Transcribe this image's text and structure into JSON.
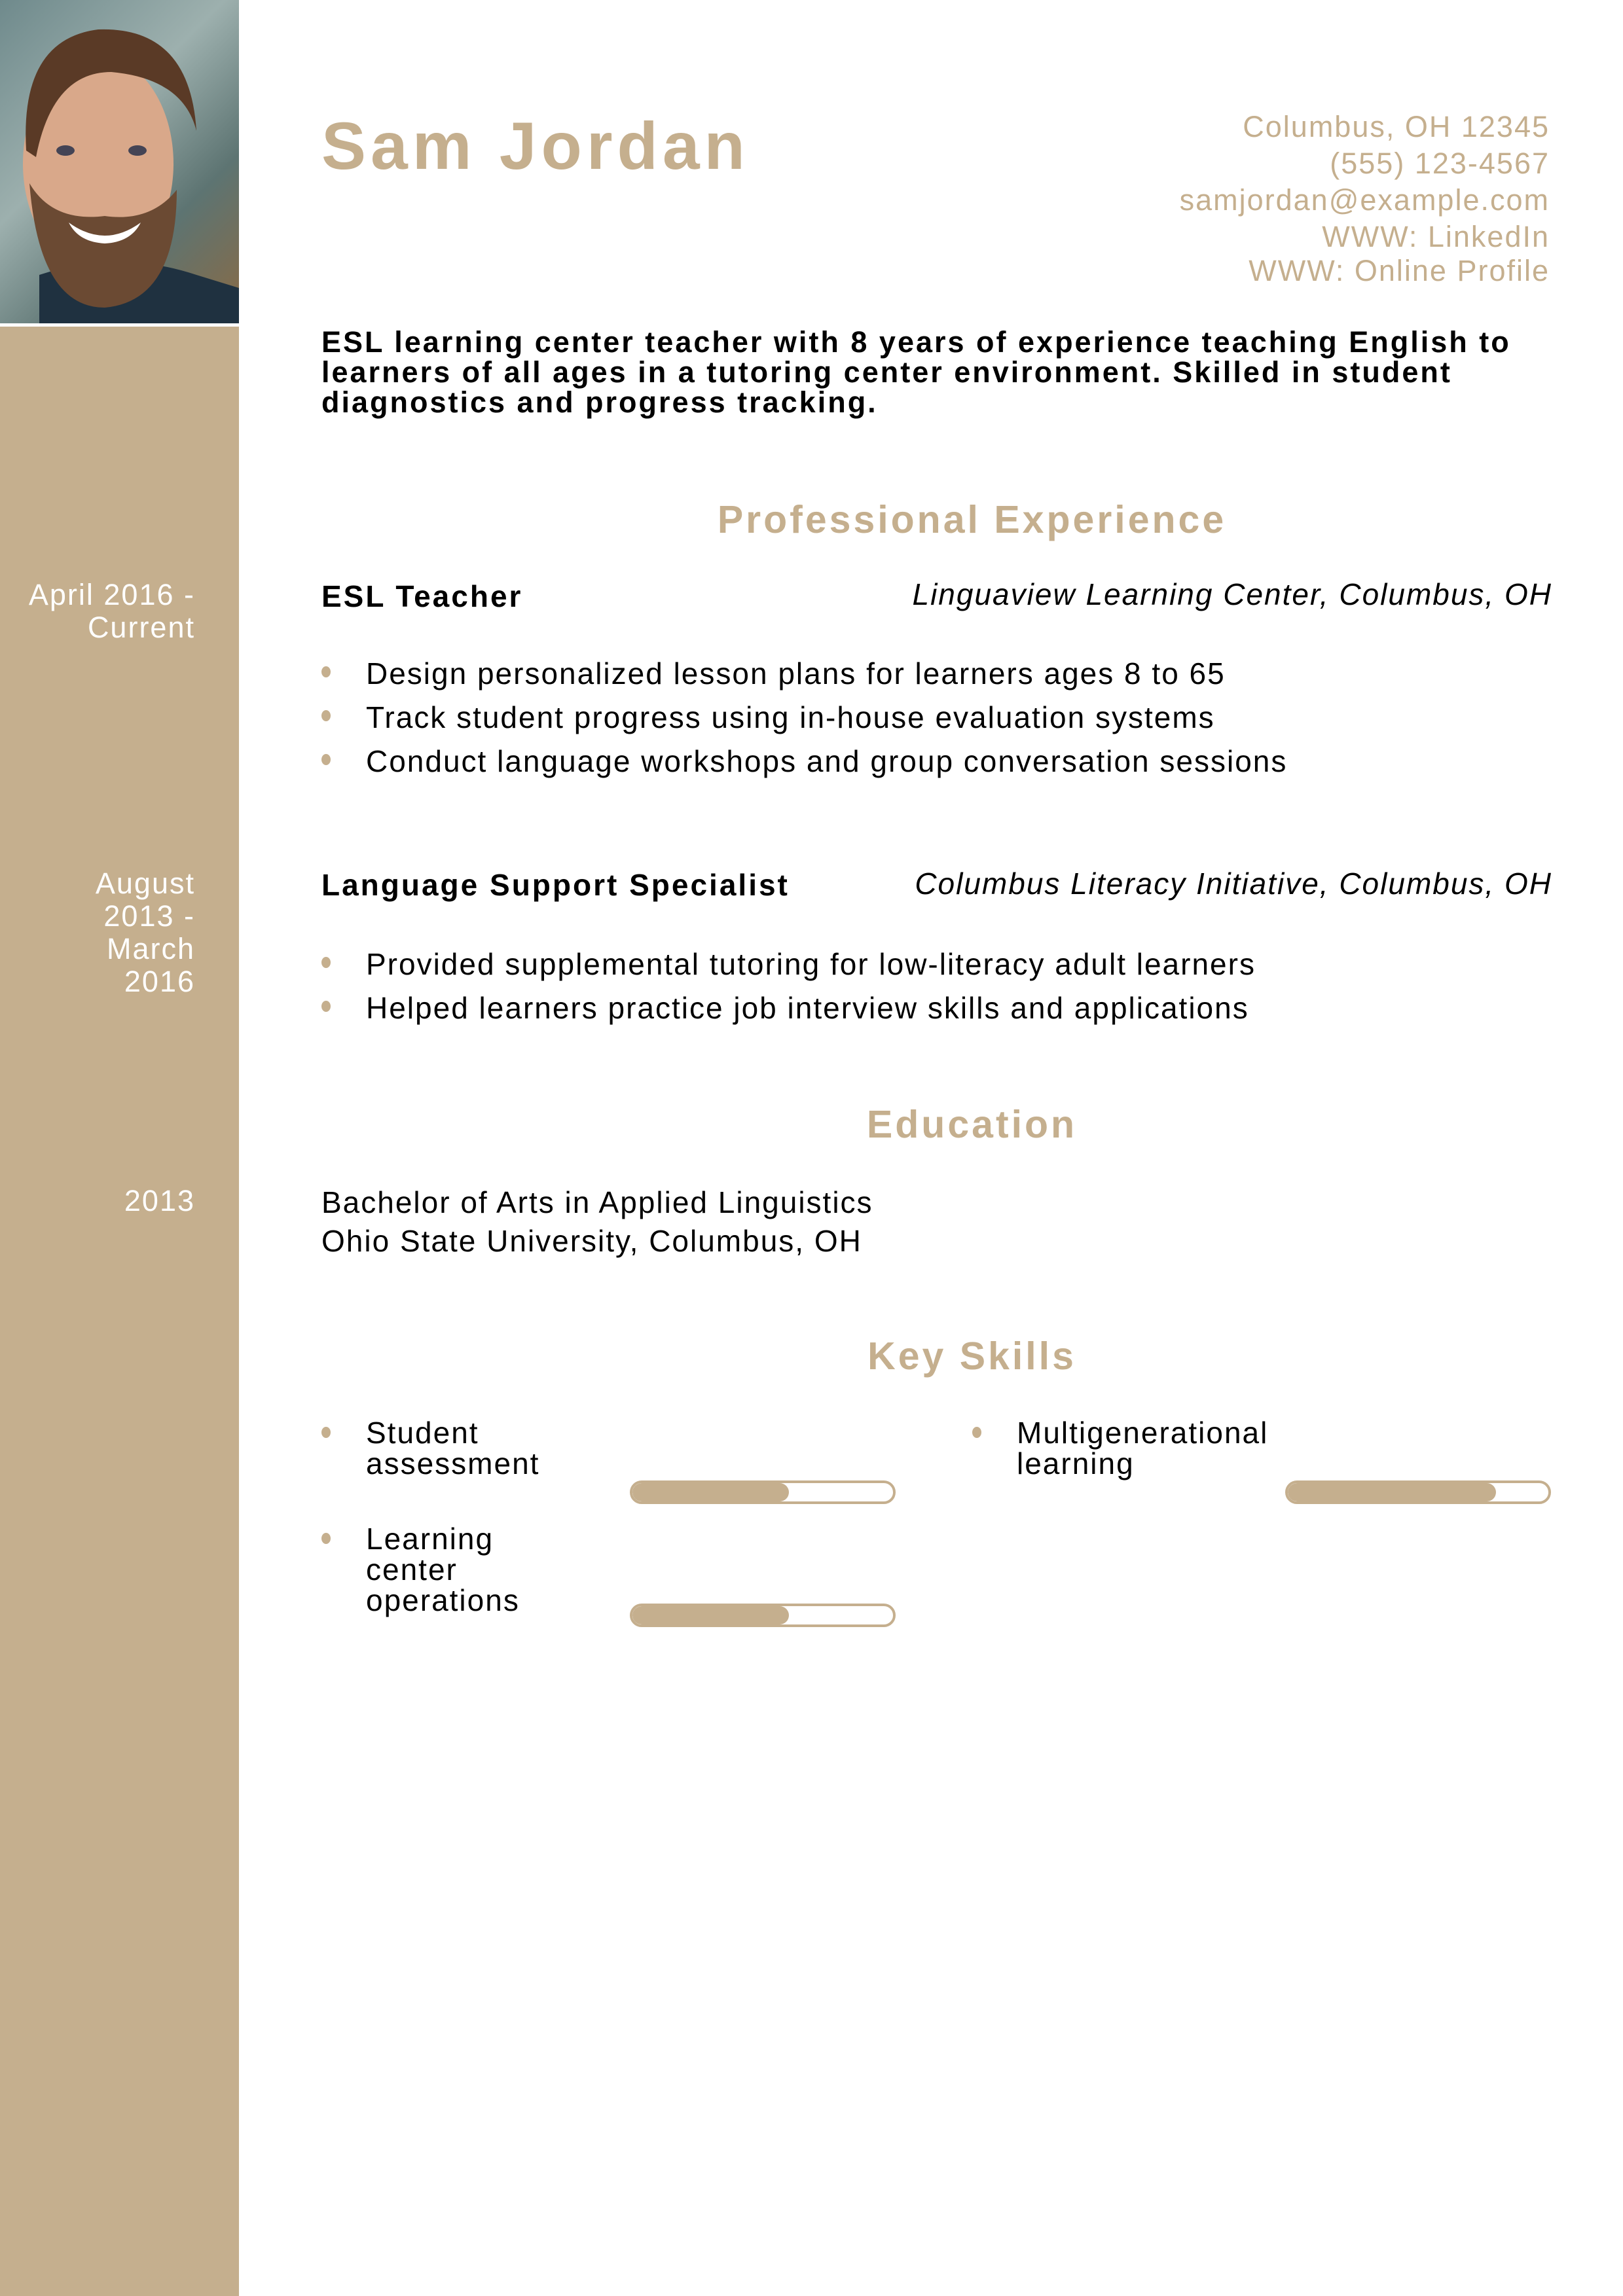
{
  "colors": {
    "accent": "#c5af8e",
    "text": "#000000",
    "background": "#ffffff"
  },
  "header": {
    "name": "Sam Jordan",
    "contact": {
      "address": "Columbus, OH 12345",
      "phone": "(555) 123-4567",
      "email": "samjordan@example.com",
      "linkedin": "WWW: LinkedIn",
      "profile": "WWW: Online Profile"
    }
  },
  "summary": "ESL learning center teacher with 8 years of experience teaching English to learners of all ages in a tutoring center environment. Skilled in student diagnostics and progress tracking.",
  "experience": {
    "heading": "Professional Experience",
    "jobs": [
      {
        "dates": "April 2016 - Current",
        "title": "ESL Teacher",
        "employer": "Linguaview Learning Center, Columbus, OH",
        "bullets": [
          "Design personalized lesson plans for learners ages 8 to 65",
          "Track student progress using in-house evaluation systems",
          "Conduct language workshops and group conversation sessions"
        ]
      },
      {
        "dates": "August 2013 - March 2016",
        "title": "Language Support Specialist",
        "employer": "Columbus Literacy Initiative, Columbus, OH",
        "bullets": [
          "Provided supplemental tutoring for low-literacy adult learners",
          "Helped learners practice job interview skills and applications"
        ]
      }
    ]
  },
  "education": {
    "heading": "Education",
    "entries": [
      {
        "year": "2013",
        "degree": "Bachelor of Arts in Applied Linguistics",
        "school": "Ohio State University, Columbus, OH"
      }
    ]
  },
  "skills": {
    "heading": "Key Skills",
    "items": [
      {
        "name": "Student assessment",
        "level": 0.6
      },
      {
        "name": "Multigenerational learning",
        "level": 0.8
      },
      {
        "name": "Learning center operations",
        "level": 0.6
      }
    ]
  }
}
